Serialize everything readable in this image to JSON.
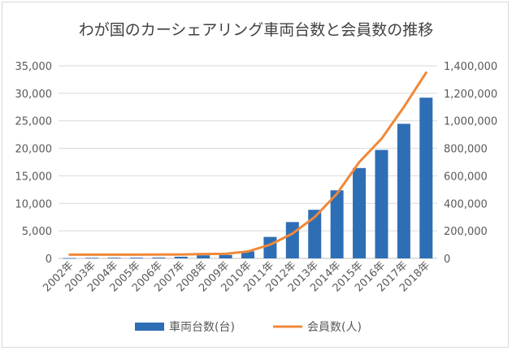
{
  "chart_data": {
    "type": "bar",
    "title": "わが国のカーシェアリング車両台数と会員数の推移",
    "categories": [
      "2002年",
      "2003年",
      "2004年",
      "2005年",
      "2006年",
      "2007年",
      "2008年",
      "2009年",
      "2010年",
      "2011年",
      "2012年",
      "2013年",
      "2014年",
      "2015年",
      "2016年",
      "2017年",
      "2018年"
    ],
    "series": [
      {
        "name": "車両台数(台)",
        "type": "bar",
        "axis": "left",
        "color": "#2e6eb5",
        "values": [
          50,
          100,
          120,
          130,
          150,
          300,
          560,
          620,
          1270,
          3900,
          6600,
          8830,
          12370,
          16420,
          19710,
          24460,
          29210
        ]
      },
      {
        "name": "会員数(人)",
        "type": "line",
        "axis": "right",
        "color": "#f0883a",
        "values": [
          27000,
          27000,
          27000,
          27000,
          27500,
          28000,
          32000,
          33000,
          50000,
          100000,
          180000,
          300000,
          470000,
          700000,
          870000,
          1100000,
          1350000
        ]
      }
    ],
    "y_left": {
      "min": 0,
      "max": 35000,
      "ticks": [
        0,
        5000,
        10000,
        15000,
        20000,
        25000,
        30000,
        35000
      ],
      "tick_labels": [
        "0",
        "5,000",
        "10,000",
        "15,000",
        "20,000",
        "25,000",
        "30,000",
        "35,000"
      ]
    },
    "y_right": {
      "min": 0,
      "max": 1400000,
      "ticks": [
        0,
        200000,
        400000,
        600000,
        800000,
        1000000,
        1200000,
        1400000
      ],
      "tick_labels": [
        "0",
        "200,000",
        "400,000",
        "600,000",
        "800,000",
        "1,000,000",
        "1,200,000",
        "1,400,000"
      ]
    },
    "grid": true,
    "legend_position": "bottom"
  }
}
